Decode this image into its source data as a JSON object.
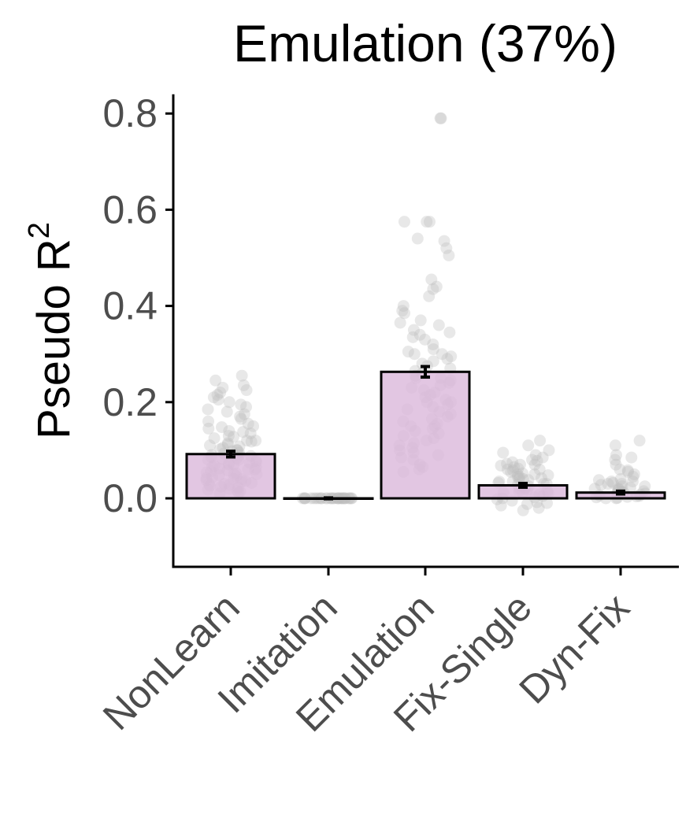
{
  "chart_data": {
    "type": "bar",
    "title": "Emulation (37%)",
    "ylabel": "Pseudo R",
    "ylabel_superscript": "2",
    "xlabel": "",
    "ylim": [
      -0.14,
      0.84
    ],
    "yticks": [
      0.0,
      0.2,
      0.4,
      0.6,
      0.8
    ],
    "ytick_labels": [
      "0.0",
      "0.2",
      "0.4",
      "0.6",
      "0.8"
    ],
    "categories": [
      "NonLearn",
      "Imitation",
      "Emulation",
      "Fix-Single",
      "Dyn-Fix"
    ],
    "values": [
      0.092,
      0.0,
      0.263,
      0.027,
      0.012
    ],
    "errors": [
      0.006,
      0.001,
      0.011,
      0.004,
      0.003
    ],
    "bar_color": "#dcb9dc",
    "point_color": "#bdbdbd",
    "grid": false,
    "legend": "none",
    "points": [
      [
        0.255,
        0.245,
        0.235,
        0.23,
        0.225,
        0.22,
        0.215,
        0.21,
        0.205,
        0.2,
        0.195,
        0.19,
        0.185,
        0.18,
        0.175,
        0.17,
        0.165,
        0.16,
        0.155,
        0.15,
        0.148,
        0.145,
        0.14,
        0.138,
        0.135,
        0.13,
        0.128,
        0.125,
        0.12,
        0.118,
        0.115,
        0.112,
        0.11,
        0.108,
        0.105,
        0.102,
        0.1,
        0.098,
        0.095,
        0.093,
        0.09,
        0.088,
        0.086,
        0.084,
        0.082,
        0.08,
        0.078,
        0.076,
        0.074,
        0.072,
        0.07,
        0.068,
        0.066,
        0.064,
        0.062,
        0.06,
        0.058,
        0.056,
        0.054,
        0.052,
        0.05,
        0.048,
        0.046,
        0.044,
        0.042,
        0.04,
        0.038,
        0.036,
        0.034,
        0.032,
        0.03,
        0.028,
        0.026,
        0.024,
        0.022,
        0.02,
        0.018,
        0.016,
        0.014,
        0.012,
        0.01,
        0.12,
        0.09,
        0.07,
        0.05,
        0.03,
        0.1,
        0.08,
        0.06,
        0.04
      ],
      [
        0.0,
        0.0,
        0.0,
        0.0,
        0.0,
        0.0,
        0.0,
        0.0,
        0.0,
        0.0,
        0.0,
        0.0,
        0.0,
        0.0,
        0.0,
        0.0,
        0.0,
        0.0,
        0.0,
        0.0,
        0.0,
        0.0,
        0.0,
        0.0,
        0.0,
        0.0,
        0.0,
        0.0,
        0.0,
        0.0
      ],
      [
        0.79,
        0.79,
        0.575,
        0.575,
        0.575,
        0.54,
        0.535,
        0.52,
        0.505,
        0.455,
        0.44,
        0.435,
        0.42,
        0.4,
        0.39,
        0.385,
        0.37,
        0.365,
        0.36,
        0.345,
        0.34,
        0.335,
        0.33,
        0.32,
        0.31,
        0.305,
        0.3,
        0.295,
        0.29,
        0.285,
        0.28,
        0.275,
        0.27,
        0.265,
        0.26,
        0.255,
        0.25,
        0.245,
        0.24,
        0.235,
        0.23,
        0.225,
        0.22,
        0.215,
        0.21,
        0.205,
        0.2,
        0.195,
        0.19,
        0.185,
        0.18,
        0.175,
        0.17,
        0.165,
        0.16,
        0.155,
        0.15,
        0.145,
        0.14,
        0.135,
        0.13,
        0.125,
        0.12,
        0.115,
        0.11,
        0.105,
        0.1,
        0.095,
        0.09,
        0.085,
        0.08,
        0.07,
        0.065,
        0.06,
        0.055,
        0.3,
        0.25,
        0.2,
        0.15,
        0.35
      ],
      [
        0.12,
        0.11,
        0.1,
        0.095,
        0.09,
        0.085,
        0.08,
        0.078,
        0.075,
        0.072,
        0.07,
        0.068,
        0.065,
        0.062,
        0.06,
        0.058,
        0.055,
        0.052,
        0.05,
        0.048,
        0.045,
        0.042,
        0.04,
        0.038,
        0.035,
        0.032,
        0.03,
        0.028,
        0.025,
        0.022,
        0.02,
        0.018,
        0.015,
        0.012,
        0.01,
        0.008,
        0.005,
        0.002,
        0.0,
        -0.002,
        -0.005,
        -0.008,
        -0.01,
        -0.012,
        -0.015,
        -0.02,
        -0.025,
        0.03,
        0.02,
        0.01,
        0.04,
        0.05,
        0.06,
        0.07,
        0.015,
        0.025,
        0.035,
        0.045
      ],
      [
        0.12,
        0.11,
        0.09,
        0.085,
        0.08,
        0.07,
        0.06,
        0.058,
        0.055,
        0.05,
        0.045,
        0.04,
        0.038,
        0.035,
        0.032,
        0.03,
        0.028,
        0.025,
        0.022,
        0.02,
        0.018,
        0.016,
        0.014,
        0.012,
        0.01,
        0.008,
        0.006,
        0.004,
        0.002,
        0.0,
        0.001,
        0.003,
        0.005,
        0.015,
        0.025,
        0.035,
        0.01,
        0.02,
        0.03,
        0.0
      ]
    ]
  }
}
